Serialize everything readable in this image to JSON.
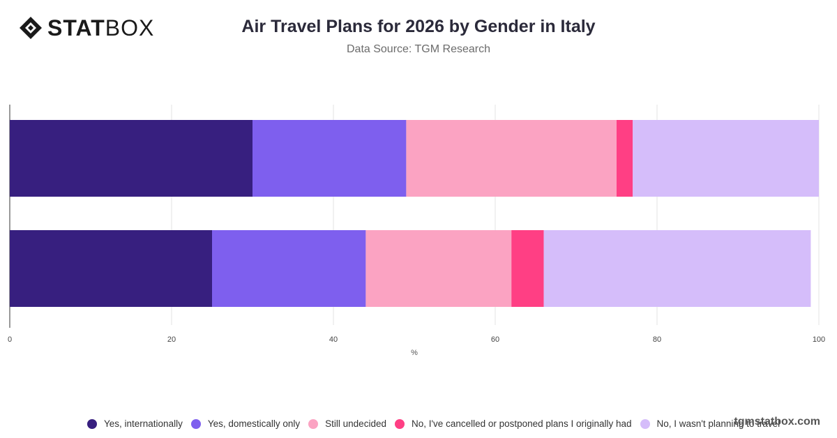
{
  "brand": {
    "logo_bold": "STAT",
    "logo_light": "BOX",
    "watermark": "tgmstatbox.com"
  },
  "header": {
    "title": "Air Travel Plans for 2026 by Gender in Italy",
    "subtitle": "Data Source: TGM Research"
  },
  "chart_data": {
    "type": "bar",
    "orientation": "horizontal",
    "stacked": true,
    "categories": [
      "",
      ""
    ],
    "series": [
      {
        "name": "Yes, internationally",
        "color": "#371F7F",
        "values": [
          30,
          25
        ]
      },
      {
        "name": "Yes, domestically only",
        "color": "#7E5FEE",
        "values": [
          19,
          19
        ]
      },
      {
        "name": "Still undecided",
        "color": "#FBA3C2",
        "values": [
          26,
          18
        ]
      },
      {
        "name": "No, I've cancelled or postponed plans I originally had",
        "color": "#FF3F84",
        "values": [
          2,
          4
        ]
      },
      {
        "name": "No, I wasn't planning to travel",
        "color": "#D5BDFA",
        "values": [
          23,
          33
        ]
      }
    ],
    "xlabel": "%",
    "xlim": [
      0,
      100
    ],
    "xticks": [
      "0",
      "20",
      "40",
      "60",
      "80",
      "100"
    ],
    "grid": true,
    "legend_position": "bottom"
  }
}
